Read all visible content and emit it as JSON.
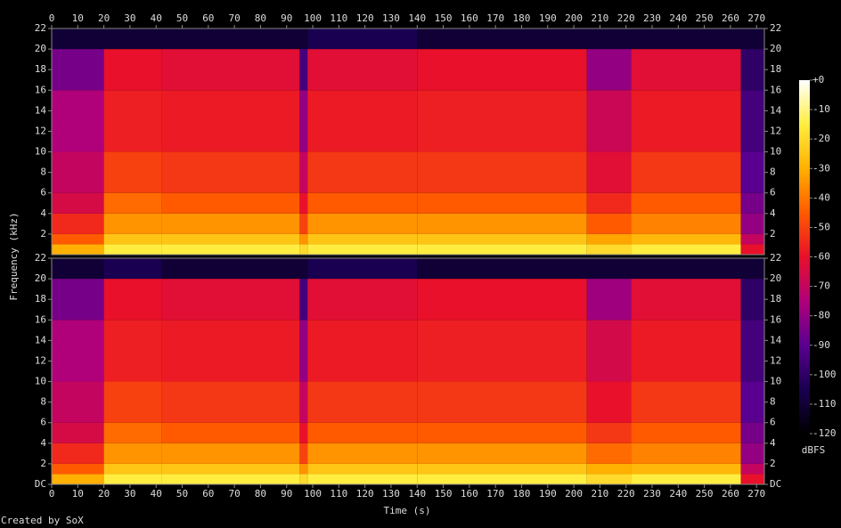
{
  "chart_data": {
    "type": "spectrogram",
    "xlabel": "Time (s)",
    "ylabel": "Frequency (kHz)",
    "footer": "Created by SoX",
    "xlim": [
      0,
      273
    ],
    "xticks": [
      0,
      10,
      20,
      30,
      40,
      50,
      60,
      70,
      80,
      90,
      100,
      110,
      120,
      130,
      140,
      150,
      160,
      170,
      180,
      190,
      200,
      210,
      220,
      230,
      240,
      250,
      260,
      270
    ],
    "ylim": [
      0,
      22
    ],
    "time_edges": [
      0,
      20,
      42,
      95,
      98,
      140,
      205,
      222,
      264,
      273
    ],
    "freq_edges": [
      0,
      1,
      2,
      4,
      6,
      10,
      16,
      20,
      22
    ],
    "colormap": [
      "#000000",
      "#1a0050",
      "#5a0090",
      "#b0007a",
      "#e8102a",
      "#ff5a00",
      "#ffb000",
      "#ffee40",
      "#ffffff"
    ],
    "channels": [
      {
        "yticks": [
          2,
          4,
          6,
          8,
          10,
          12,
          14,
          16,
          18,
          20,
          22
        ],
        "values": [
          [
            -30,
            -15,
            -15,
            -20,
            -15,
            -15,
            -20,
            -15,
            -60
          ],
          [
            -45,
            -25,
            -25,
            -35,
            -25,
            -25,
            -32,
            -28,
            -70
          ],
          [
            -55,
            -35,
            -35,
            -50,
            -35,
            -35,
            -45,
            -38,
            -80
          ],
          [
            -65,
            -42,
            -45,
            -60,
            -45,
            -45,
            -55,
            -45,
            -85
          ],
          [
            -70,
            -50,
            -52,
            -70,
            -52,
            -52,
            -62,
            -52,
            -90
          ],
          [
            -75,
            -57,
            -58,
            -80,
            -58,
            -57,
            -68,
            -58,
            -95
          ],
          [
            -85,
            -60,
            -62,
            -95,
            -62,
            -60,
            -80,
            -62,
            -100
          ],
          [
            -110,
            -110,
            -110,
            -110,
            -105,
            -110,
            -110,
            -110,
            -110
          ]
        ]
      },
      {
        "yticks": [
          {
            "value": 0,
            "label": "DC"
          },
          2,
          4,
          6,
          8,
          10,
          12,
          14,
          16,
          18,
          20,
          22
        ],
        "values": [
          [
            -30,
            -15,
            -15,
            -20,
            -15,
            -15,
            -20,
            -15,
            -60
          ],
          [
            -45,
            -25,
            -25,
            -35,
            -25,
            -25,
            -30,
            -28,
            -70
          ],
          [
            -55,
            -35,
            -35,
            -50,
            -35,
            -35,
            -42,
            -38,
            -80
          ],
          [
            -65,
            -42,
            -45,
            -60,
            -45,
            -45,
            -52,
            -45,
            -85
          ],
          [
            -70,
            -50,
            -52,
            -70,
            -52,
            -52,
            -60,
            -52,
            -90
          ],
          [
            -75,
            -57,
            -58,
            -80,
            -58,
            -57,
            -66,
            -58,
            -95
          ],
          [
            -85,
            -60,
            -62,
            -95,
            -62,
            -60,
            -78,
            -62,
            -100
          ],
          [
            -110,
            -105,
            -110,
            -110,
            -105,
            -110,
            -110,
            -110,
            -110
          ]
        ]
      }
    ],
    "colorbar": {
      "label": "dBFS",
      "lim": [
        -120,
        0
      ],
      "ticks": [
        {
          "value": 0,
          "label": "+0"
        },
        -10,
        -20,
        -30,
        -40,
        -50,
        -60,
        -70,
        -80,
        -90,
        -100,
        -110,
        -120
      ]
    }
  }
}
